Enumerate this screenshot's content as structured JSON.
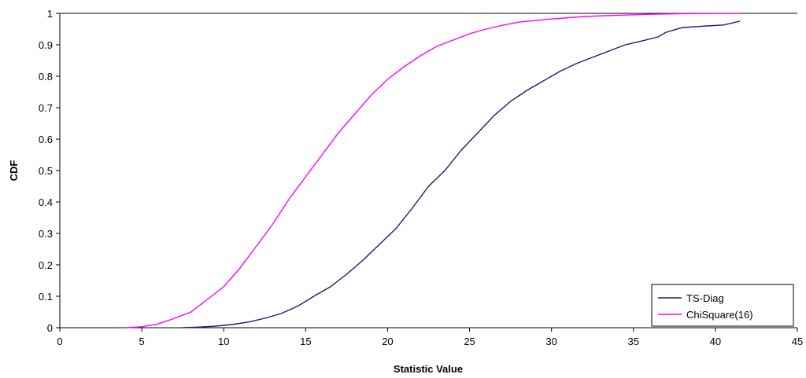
{
  "chart_data": {
    "type": "line",
    "title": "",
    "xlabel": "Statistic Value",
    "ylabel": "CDF",
    "xlim": [
      0,
      45
    ],
    "ylim": [
      0,
      1
    ],
    "x_ticks": [
      "0",
      "5",
      "10",
      "15",
      "20",
      "25",
      "30",
      "35",
      "40",
      "45"
    ],
    "y_ticks": [
      "0",
      "0.1",
      "0.2",
      "0.3",
      "0.4",
      "0.5",
      "0.6",
      "0.7",
      "0.8",
      "0.9",
      "1"
    ],
    "grid": false,
    "legend_position": "bottom-right",
    "series": [
      {
        "name": "TS-Diag",
        "color": "#1a1a7a",
        "points": [
          [
            7.5,
            0.0
          ],
          [
            8.5,
            0.002
          ],
          [
            9.5,
            0.005
          ],
          [
            10.5,
            0.01
          ],
          [
            11.5,
            0.018
          ],
          [
            12.5,
            0.03
          ],
          [
            13.5,
            0.045
          ],
          [
            14.5,
            0.068
          ],
          [
            15.5,
            0.1
          ],
          [
            16.5,
            0.13
          ],
          [
            17.5,
            0.17
          ],
          [
            18.5,
            0.215
          ],
          [
            19.5,
            0.265
          ],
          [
            20.5,
            0.315
          ],
          [
            21.5,
            0.38
          ],
          [
            22.5,
            0.45
          ],
          [
            23.5,
            0.5
          ],
          [
            24.5,
            0.565
          ],
          [
            25.5,
            0.62
          ],
          [
            26.5,
            0.675
          ],
          [
            27.5,
            0.72
          ],
          [
            28.5,
            0.755
          ],
          [
            29.5,
            0.785
          ],
          [
            30.5,
            0.815
          ],
          [
            31.5,
            0.84
          ],
          [
            32.5,
            0.86
          ],
          [
            33.5,
            0.88
          ],
          [
            34.5,
            0.9
          ],
          [
            35.5,
            0.912
          ],
          [
            36.5,
            0.925
          ],
          [
            37.0,
            0.94
          ],
          [
            38.0,
            0.955
          ],
          [
            39.5,
            0.96
          ],
          [
            40.5,
            0.963
          ],
          [
            41.5,
            0.975
          ]
        ]
      },
      {
        "name": "ChiSquare(16)",
        "color": "#ff00ff",
        "points": [
          [
            4.0,
            0.0
          ],
          [
            5.0,
            0.003
          ],
          [
            6.0,
            0.012
          ],
          [
            7.0,
            0.03
          ],
          [
            8.0,
            0.05
          ],
          [
            9.0,
            0.09
          ],
          [
            10.0,
            0.13
          ],
          [
            11.0,
            0.19
          ],
          [
            12.0,
            0.26
          ],
          [
            13.0,
            0.33
          ],
          [
            14.0,
            0.41
          ],
          [
            15.0,
            0.48
          ],
          [
            16.0,
            0.55
          ],
          [
            17.0,
            0.62
          ],
          [
            18.0,
            0.68
          ],
          [
            19.0,
            0.74
          ],
          [
            20.0,
            0.79
          ],
          [
            21.0,
            0.83
          ],
          [
            22.0,
            0.865
          ],
          [
            23.0,
            0.895
          ],
          [
            24.0,
            0.915
          ],
          [
            25.0,
            0.935
          ],
          [
            26.0,
            0.95
          ],
          [
            27.0,
            0.962
          ],
          [
            28.0,
            0.972
          ],
          [
            30.0,
            0.982
          ],
          [
            32.0,
            0.99
          ],
          [
            34.0,
            0.994
          ],
          [
            36.0,
            0.997
          ],
          [
            38.0,
            0.999
          ],
          [
            41.5,
            1.0
          ]
        ]
      }
    ]
  }
}
